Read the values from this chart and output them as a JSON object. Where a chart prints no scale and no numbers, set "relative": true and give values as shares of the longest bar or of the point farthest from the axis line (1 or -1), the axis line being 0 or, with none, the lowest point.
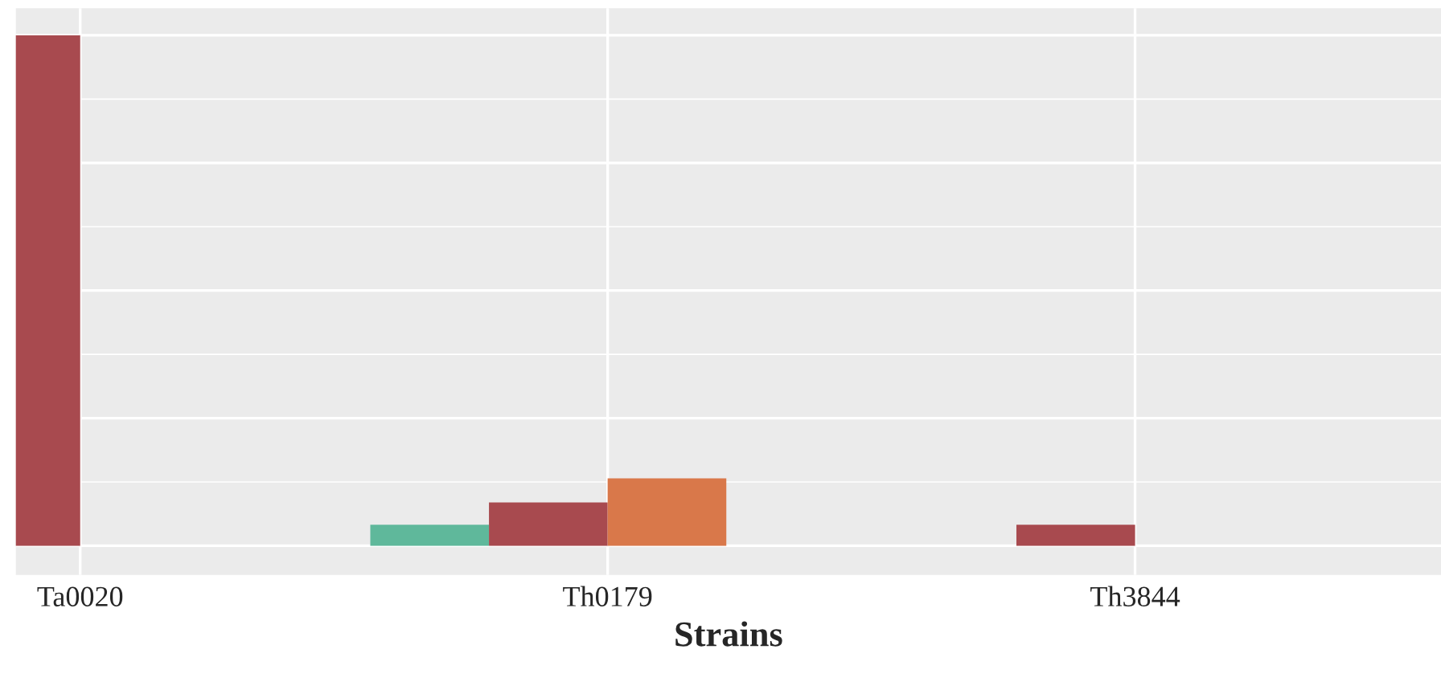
{
  "chart_data": {
    "type": "bar",
    "xlabel": "Strains",
    "categories": [
      "Ta0020",
      "Th0179",
      "Th3844"
    ],
    "relative": true,
    "grid": true,
    "legend": false,
    "series": [
      {
        "color": "#5fb89b",
        "values": [
          null,
          0.041,
          null
        ]
      },
      {
        "color": "#a84a4f",
        "values": [
          1,
          0.085,
          0.041
        ]
      },
      {
        "color": "#d9784a",
        "values": [
          null,
          0.132,
          null
        ]
      }
    ]
  }
}
